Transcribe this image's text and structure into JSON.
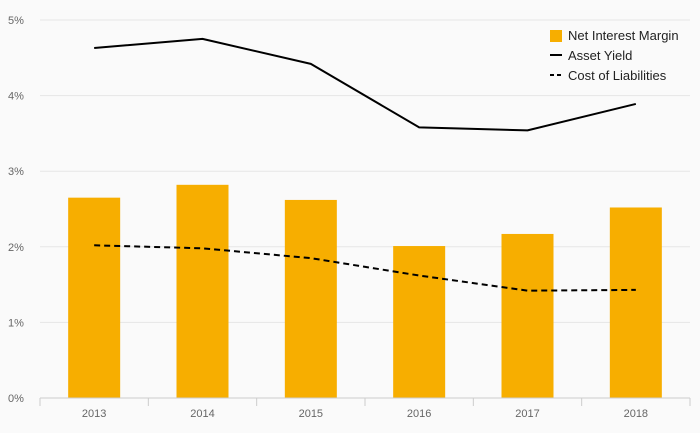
{
  "colors": {
    "bar": "#f7ae00",
    "line": "#000000",
    "grid": "#e6e6e6",
    "axis": "#cccccc",
    "background": "#fafafa"
  },
  "chart_data": {
    "type": "bar",
    "title": "",
    "xlabel": "",
    "ylabel": "",
    "categories": [
      "2013",
      "2014",
      "2015",
      "2016",
      "2017",
      "2018"
    ],
    "y_ticks": [
      "0%",
      "1%",
      "2%",
      "3%",
      "4%",
      "5%"
    ],
    "ylim": [
      0,
      5
    ],
    "grid": true,
    "legend_position": "top-right",
    "series": [
      {
        "name": "Net Interest Margin",
        "type": "bar",
        "values": [
          2.65,
          2.82,
          2.62,
          2.01,
          2.17,
          2.52
        ]
      },
      {
        "name": "Asset Yield",
        "type": "line",
        "style": "solid",
        "values": [
          4.63,
          4.75,
          4.42,
          3.58,
          3.54,
          3.89
        ]
      },
      {
        "name": "Cost of Liabilities",
        "type": "line",
        "style": "dashed",
        "values": [
          2.02,
          1.98,
          1.85,
          1.62,
          1.42,
          1.43
        ]
      }
    ]
  }
}
